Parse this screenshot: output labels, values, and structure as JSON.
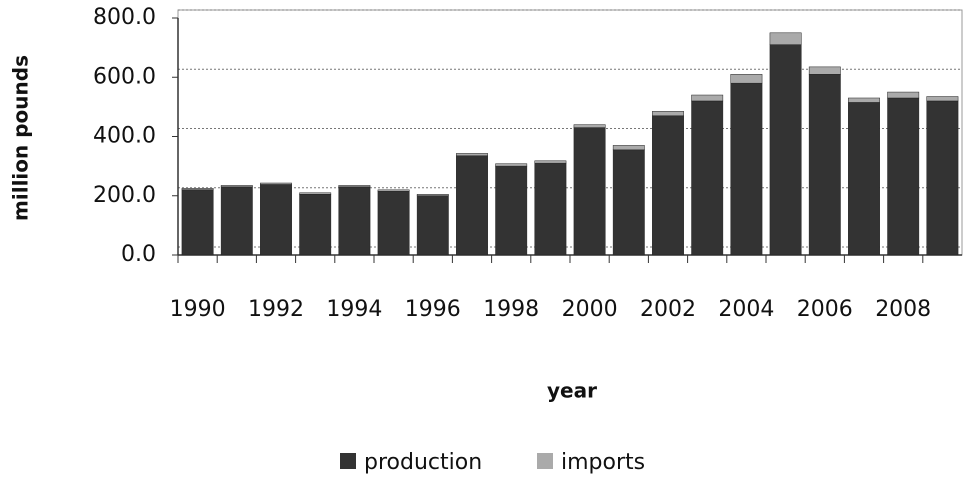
{
  "chart_data": {
    "type": "bar",
    "stacked": true,
    "x_label": "year",
    "y_label": "million pounds",
    "categories": [
      "1990",
      null,
      "1992",
      null,
      "1994",
      null,
      "1996",
      null,
      "1998",
      null,
      "2000",
      null,
      "2002",
      null,
      "2004",
      null,
      "2006",
      null,
      "2008",
      null
    ],
    "series": [
      {
        "name": "production",
        "color": "#333333",
        "values": [
          220,
          230,
          238,
          205,
          230,
          215,
          200,
          335,
          300,
          310,
          430,
          355,
          470,
          520,
          580,
          710,
          610,
          515,
          530,
          520
        ]
      },
      {
        "name": "imports",
        "color": "#aaaaaa",
        "values": [
          5,
          5,
          5,
          5,
          5,
          5,
          5,
          8,
          8,
          8,
          10,
          15,
          15,
          20,
          30,
          40,
          25,
          15,
          20,
          15
        ]
      }
    ],
    "ylim": [
      0,
      800
    ],
    "yticks": [
      {
        "value": 0,
        "label": "0.0"
      },
      {
        "value": 200,
        "label": "200.0"
      },
      {
        "value": 400,
        "label": "400.0"
      },
      {
        "value": 600,
        "label": "600.0"
      },
      {
        "value": 800,
        "label": "800.0"
      }
    ],
    "grid": true,
    "legend": "bottom"
  }
}
